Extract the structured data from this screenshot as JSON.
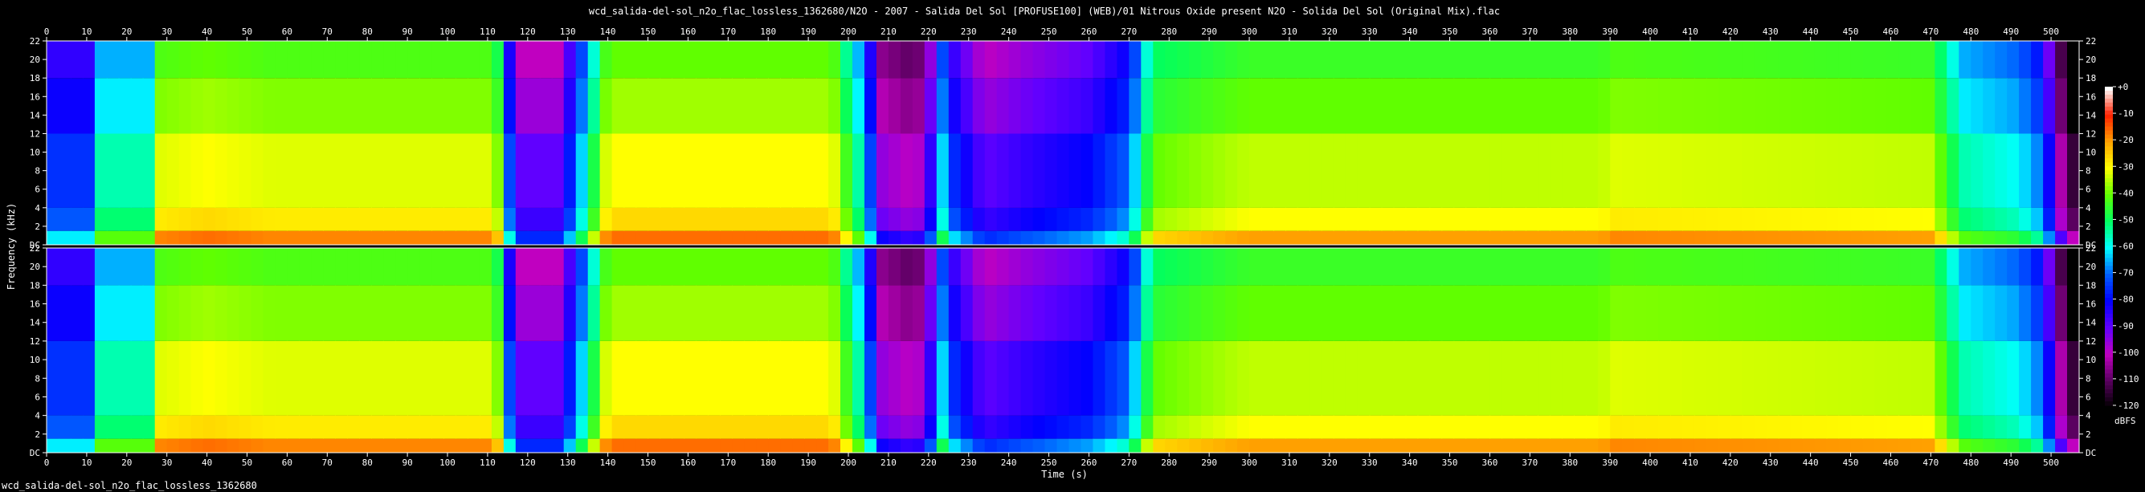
{
  "window": {
    "title": "wcd_salida-del-sol_n2o_flac_lossless_1362680/N2O - 2007 - Salida Del Sol [PROFUSE100] (WEB)/01 Nitrous Oxide present N2O - Solida Del Sol (Original Mix).flac",
    "footer_filename": "wcd_salida-del-sol_n2o_flac_lossless_1362680"
  },
  "chart_data": {
    "type": "heatmap",
    "title": "wcd_salida-del-sol_n2o_flac_lossless_1362680/N2O - 2007 - Salida Del Sol [PROFUSE100] (WEB)/01 Nitrous Oxide present N2O - Solida Del Sol (Original Mix).flac",
    "xlabel": "Time (s)",
    "ylabel": "Frequency (kHz)",
    "xlim": [
      0,
      507
    ],
    "ylim": [
      0,
      22
    ],
    "x_ticks": [
      0,
      10,
      20,
      30,
      40,
      50,
      60,
      70,
      80,
      90,
      100,
      110,
      120,
      130,
      140,
      150,
      160,
      170,
      180,
      190,
      200,
      210,
      220,
      230,
      240,
      250,
      260,
      270,
      280,
      290,
      300,
      310,
      320,
      330,
      340,
      350,
      360,
      370,
      380,
      390,
      400,
      410,
      420,
      430,
      440,
      450,
      460,
      470,
      480,
      490,
      500
    ],
    "y_ticks": [
      "DC",
      "2",
      "4",
      "6",
      "8",
      "10",
      "12",
      "14",
      "16",
      "18",
      "20",
      "22"
    ],
    "channels": 2,
    "colorbar": {
      "unit": "dBFS",
      "ticks": [
        "+0",
        "-10",
        "-20",
        "-30",
        "-40",
        "-50",
        "-60",
        "-70",
        "-80",
        "-90",
        "-100",
        "-110",
        "-120"
      ],
      "range": [
        -120,
        0
      ],
      "colors": [
        "#000000",
        "#5a0060",
        "#c000c0",
        "#6000ff",
        "#0000ff",
        "#0060ff",
        "#00ffff",
        "#00ff60",
        "#60ff00",
        "#ffff00",
        "#ffa000",
        "#ff2000",
        "#ffffff"
      ]
    },
    "grid": false,
    "legend": "right",
    "energy_profile": {
      "time_s": [
        0,
        12,
        13,
        27,
        28,
        40,
        56,
        112,
        117,
        128,
        138,
        140,
        196,
        204,
        208,
        216,
        220,
        222,
        226,
        234,
        245,
        260,
        270,
        276,
        300,
        388,
        390,
        470,
        478,
        492,
        498,
        502,
        507
      ],
      "cutoff_khz": [
        22,
        22,
        22,
        22,
        22,
        22,
        22,
        22,
        22,
        22,
        22,
        22,
        22,
        22,
        22,
        22,
        22,
        22,
        22,
        22,
        22,
        22,
        22,
        22,
        22,
        22,
        22,
        22,
        22,
        22,
        22,
        22,
        0
      ],
      "level_db": [
        -75,
        -75,
        -55,
        -55,
        -32,
        -30,
        -32,
        -32,
        -90,
        -90,
        -40,
        -30,
        -30,
        -60,
        -95,
        -100,
        -95,
        -55,
        -75,
        -90,
        -85,
        -80,
        -70,
        -40,
        -34,
        -34,
        -32,
        -34,
        -55,
        -60,
        -70,
        -100,
        -120
      ]
    }
  }
}
